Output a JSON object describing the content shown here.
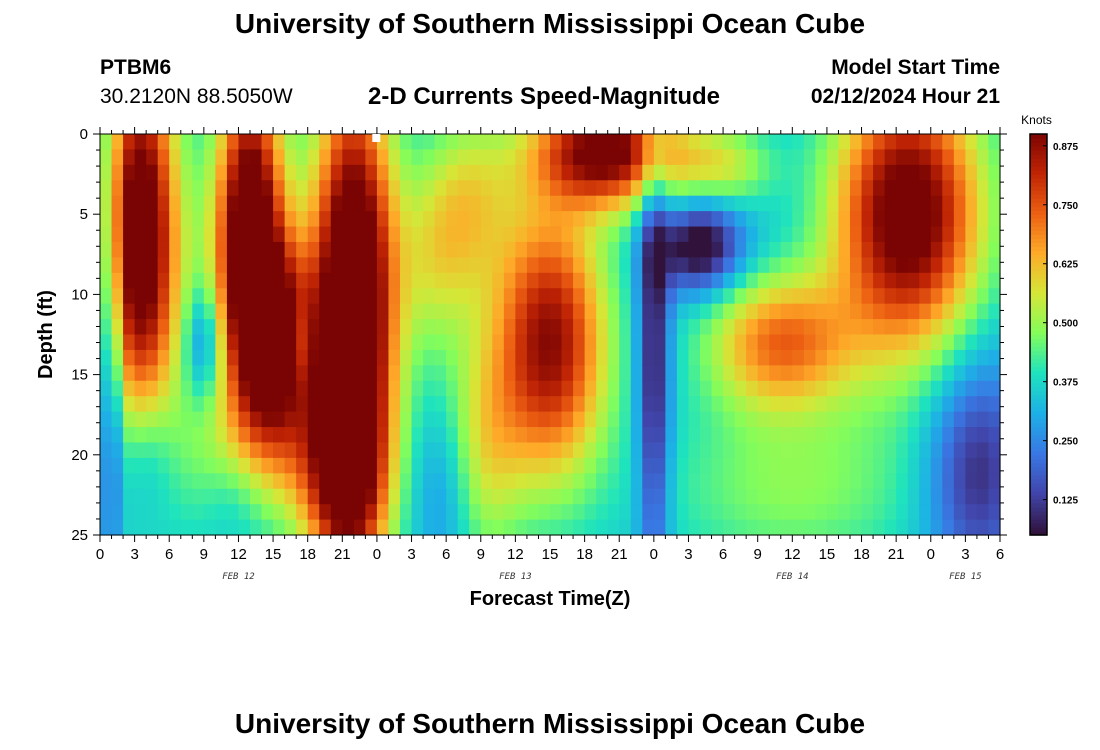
{
  "header": {
    "title": "University of Southern Mississippi Ocean Cube",
    "station": "PTBM6",
    "coords": "30.2120N  88.5050W",
    "subtitle": "2-D Currents Speed-Magnitude",
    "model_start_label": "Model Start Time",
    "model_start_value": "02/12/2024 Hour 21"
  },
  "footer": {
    "title": "University of Southern Mississippi Ocean Cube"
  },
  "chart_data": {
    "type": "heatmap",
    "title": "2-D Currents Speed-Magnitude",
    "xlabel": "Forecast Time(Z)",
    "ylabel": "Depth (ft)",
    "x_range_hours": [
      0,
      78
    ],
    "x_ticks": [
      {
        "h": 0,
        "label": "0"
      },
      {
        "h": 3,
        "label": "3"
      },
      {
        "h": 6,
        "label": "6"
      },
      {
        "h": 9,
        "label": "9"
      },
      {
        "h": 12,
        "label": "12"
      },
      {
        "h": 15,
        "label": "15"
      },
      {
        "h": 18,
        "label": "18"
      },
      {
        "h": 21,
        "label": "21"
      },
      {
        "h": 24,
        "label": "0"
      },
      {
        "h": 27,
        "label": "3"
      },
      {
        "h": 30,
        "label": "6"
      },
      {
        "h": 33,
        "label": "9"
      },
      {
        "h": 36,
        "label": "12"
      },
      {
        "h": 39,
        "label": "15"
      },
      {
        "h": 42,
        "label": "18"
      },
      {
        "h": 45,
        "label": "21"
      },
      {
        "h": 48,
        "label": "0"
      },
      {
        "h": 51,
        "label": "3"
      },
      {
        "h": 54,
        "label": "6"
      },
      {
        "h": 57,
        "label": "9"
      },
      {
        "h": 60,
        "label": "12"
      },
      {
        "h": 63,
        "label": "15"
      },
      {
        "h": 66,
        "label": "18"
      },
      {
        "h": 69,
        "label": "21"
      },
      {
        "h": 72,
        "label": "0"
      },
      {
        "h": 75,
        "label": "3"
      },
      {
        "h": 78,
        "label": "6"
      }
    ],
    "date_labels": [
      {
        "h": 12,
        "label": "FEB 12"
      },
      {
        "h": 36,
        "label": "FEB 13"
      },
      {
        "h": 60,
        "label": "FEB 14"
      },
      {
        "h": 75,
        "label": "FEB 15"
      }
    ],
    "y_range_ft": [
      0,
      25
    ],
    "y_ticks": [
      {
        "v": 0,
        "label": "0"
      },
      {
        "v": 5,
        "label": "5"
      },
      {
        "v": 10,
        "label": "10"
      },
      {
        "v": 15,
        "label": "15"
      },
      {
        "v": 20,
        "label": "20"
      },
      {
        "v": 25,
        "label": "25"
      }
    ],
    "colorbar": {
      "title": "Knots",
      "range": [
        0.05,
        0.9
      ],
      "ticks": [
        {
          "v": 0.125,
          "label": "0.125"
        },
        {
          "v": 0.25,
          "label": "0.250"
        },
        {
          "v": 0.375,
          "label": "0.375"
        },
        {
          "v": 0.5,
          "label": "0.500"
        },
        {
          "v": 0.625,
          "label": "0.625"
        },
        {
          "v": 0.75,
          "label": "0.750"
        },
        {
          "v": 0.875,
          "label": "0.875"
        }
      ]
    },
    "blobs": [
      {
        "t": 3.5,
        "d": 6,
        "st": 2.2,
        "sd": 8,
        "a": 0.65
      },
      {
        "t": 13,
        "d": 6,
        "st": 2,
        "sd": 7,
        "a": 0.65
      },
      {
        "t": 22,
        "d": 11,
        "st": 2.4,
        "sd": 10,
        "a": 0.75
      },
      {
        "t": 21,
        "d": 22,
        "st": 2.5,
        "sd": 4,
        "a": 0.3
      },
      {
        "t": 15.5,
        "d": 13,
        "st": 2.2,
        "sd": 4,
        "a": 0.5
      },
      {
        "t": 14.5,
        "d": 20,
        "st": 5,
        "sd": 3,
        "a": 0.15
      },
      {
        "t": 14,
        "d": 13,
        "st": 9,
        "sd": 9,
        "a": 0.12
      },
      {
        "t": 33,
        "d": 20,
        "st": 2.5,
        "sd": 5,
        "a": 0.2
      },
      {
        "t": 32,
        "d": 4,
        "st": 2.8,
        "sd": 4,
        "a": 0.2
      },
      {
        "t": 29,
        "d": 8,
        "st": 2.5,
        "sd": 4,
        "a": 0.15
      },
      {
        "t": 39,
        "d": 13,
        "st": 3.5,
        "sd": 6,
        "a": 0.55
      },
      {
        "t": 44,
        "d": 1,
        "st": 4.5,
        "sd": 2.5,
        "a": 0.6
      },
      {
        "t": 54,
        "d": 2,
        "st": 3,
        "sd": 1.8,
        "a": 0.2
      },
      {
        "t": 59,
        "d": 13,
        "st": 4.5,
        "sd": 3,
        "a": 0.38
      },
      {
        "t": 60,
        "d": 22,
        "st": 8,
        "sd": 4,
        "a": 0.15
      },
      {
        "t": 70,
        "d": 5,
        "st": 4.5,
        "sd": 6,
        "a": 0.65
      },
      {
        "t": 4,
        "d": 20,
        "st": 1.8,
        "sd": 3,
        "a": -0.12
      },
      {
        "t": 9,
        "d": 13,
        "st": 1.2,
        "sd": 2.5,
        "a": -0.2
      },
      {
        "t": 17,
        "d": 13,
        "st": 0.8,
        "sd": 2,
        "a": -0.18
      },
      {
        "t": 12,
        "d": 22,
        "st": 2,
        "sd": 2.5,
        "a": -0.1
      },
      {
        "t": 30,
        "d": 22,
        "st": 2,
        "sd": 4,
        "a": -0.12
      },
      {
        "t": 48,
        "d": 14,
        "st": 1,
        "sd": 10,
        "a": -0.3
      },
      {
        "t": 52,
        "d": 7,
        "st": 2.5,
        "sd": 2,
        "a": -0.35
      },
      {
        "t": 76,
        "d": 21,
        "st": 3,
        "sd": 5,
        "a": -0.25
      },
      {
        "t": 1,
        "d": 15,
        "st": 0.6,
        "sd": 10,
        "a": -0.2
      }
    ],
    "base_speed": 0.33
  }
}
